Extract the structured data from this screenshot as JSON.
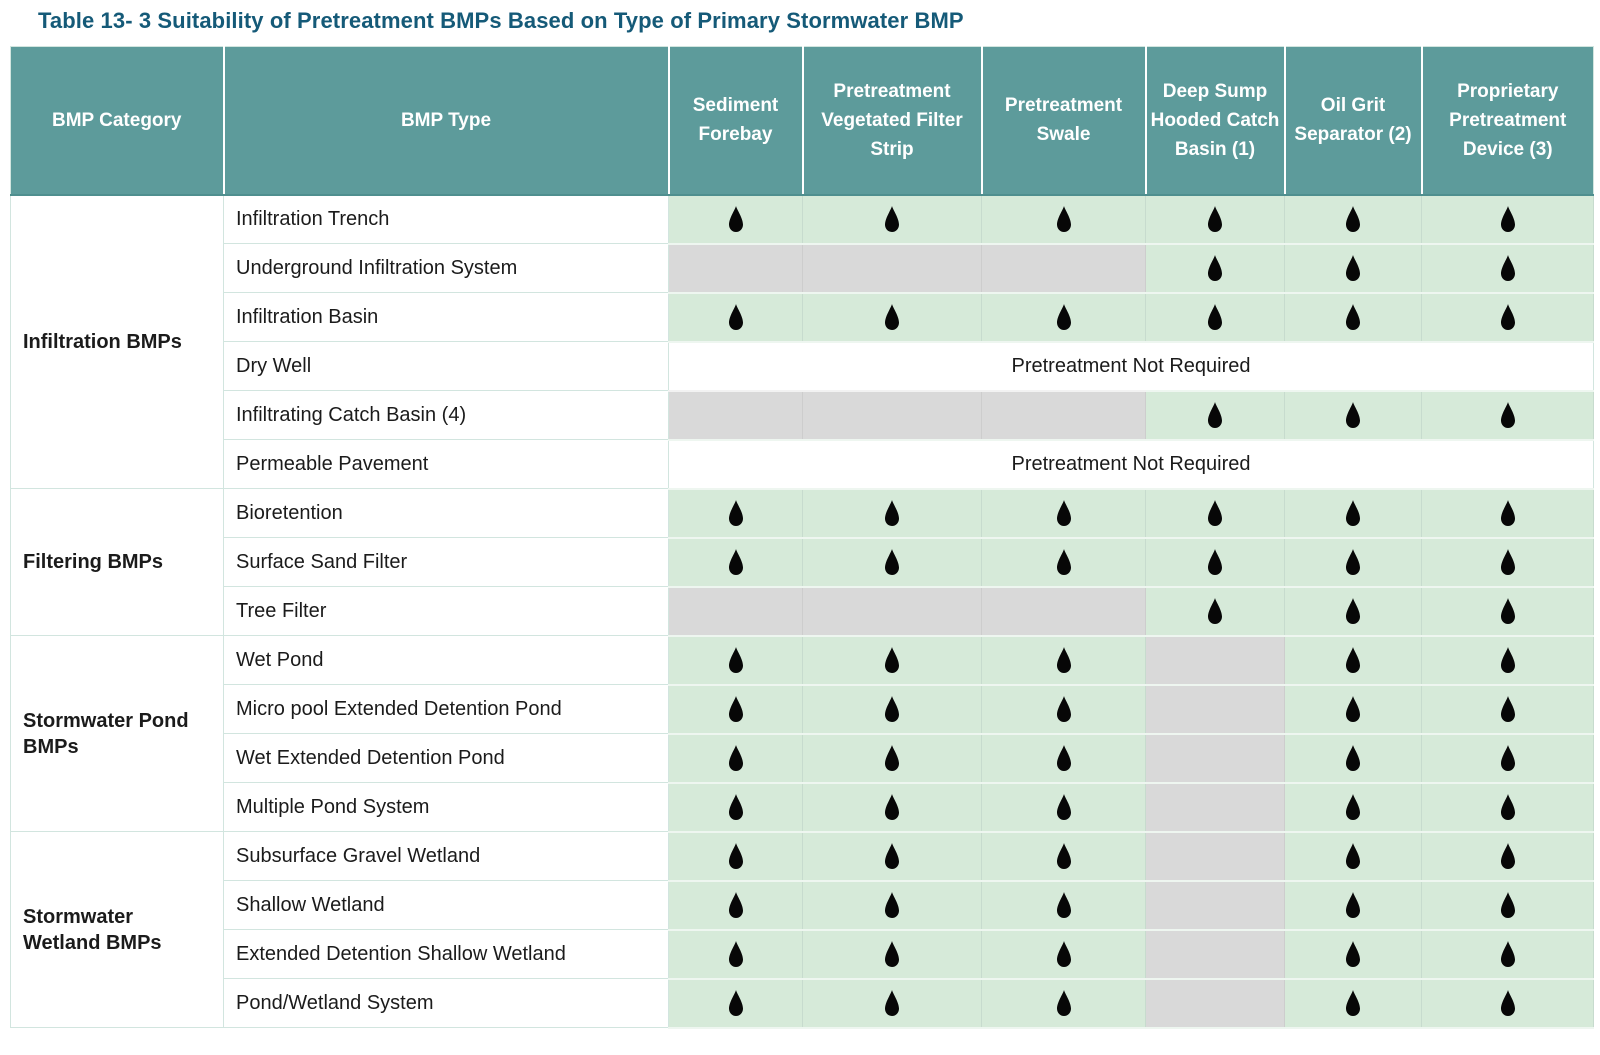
{
  "title": "Table 13- 3 Suitability of Pretreatment BMPs Based on Type of Primary Stormwater BMP",
  "colors": {
    "header_bg": "#5d9b9b",
    "header_text": "#ffffff",
    "suitable_cell_bg": "#d6ead9",
    "excluded_cell_bg": "#d9d9d9",
    "title_text": "#155a78",
    "drop_icon": "#070707"
  },
  "icons": {
    "suitable_marker": "water-drop-icon"
  },
  "table": {
    "columns": [
      "BMP Category",
      "BMP Type",
      "Sediment Forebay",
      "Pretreatment Vegetated Filter Strip",
      "Pretreatment Swale",
      "Deep Sump Hooded Catch Basin (1)",
      "Oil Grit Separator (2)",
      "Proprietary Pretreatment Device (3)"
    ],
    "groups": [
      {
        "category": "Infiltration BMPs",
        "rows": [
          {
            "type": "Infiltration Trench",
            "cells": [
              "drop",
              "drop",
              "drop",
              "drop",
              "drop",
              "drop"
            ]
          },
          {
            "type": "Underground Infiltration System",
            "cells": [
              "gray",
              "gray",
              "gray",
              "drop",
              "drop",
              "drop"
            ]
          },
          {
            "type": "Infiltration Basin",
            "cells": [
              "drop",
              "drop",
              "drop",
              "drop",
              "drop",
              "drop"
            ]
          },
          {
            "type": "Dry Well",
            "span_text": "Pretreatment Not Required"
          },
          {
            "type": "Infiltrating Catch Basin (4)",
            "cells": [
              "gray",
              "gray",
              "gray",
              "drop",
              "drop",
              "drop"
            ]
          },
          {
            "type": "Permeable Pavement",
            "span_text": "Pretreatment Not Required"
          }
        ]
      },
      {
        "category": "Filtering BMPs",
        "rows": [
          {
            "type": "Bioretention",
            "cells": [
              "drop",
              "drop",
              "drop",
              "drop",
              "drop",
              "drop"
            ]
          },
          {
            "type": "Surface Sand Filter",
            "cells": [
              "drop",
              "drop",
              "drop",
              "drop",
              "drop",
              "drop"
            ]
          },
          {
            "type": "Tree Filter",
            "cells": [
              "gray",
              "gray",
              "gray",
              "drop",
              "drop",
              "drop"
            ]
          }
        ]
      },
      {
        "category": "Stormwater Pond BMPs",
        "rows": [
          {
            "type": "Wet Pond",
            "cells": [
              "drop",
              "drop",
              "drop",
              "gray",
              "drop",
              "drop"
            ]
          },
          {
            "type": "Micro pool Extended Detention Pond",
            "cells": [
              "drop",
              "drop",
              "drop",
              "gray",
              "drop",
              "drop"
            ]
          },
          {
            "type": "Wet Extended Detention Pond",
            "cells": [
              "drop",
              "drop",
              "drop",
              "gray",
              "drop",
              "drop"
            ]
          },
          {
            "type": "Multiple Pond System",
            "cells": [
              "drop",
              "drop",
              "drop",
              "gray",
              "drop",
              "drop"
            ]
          }
        ]
      },
      {
        "category": "Stormwater Wetland BMPs",
        "rows": [
          {
            "type": "Subsurface Gravel Wetland",
            "cells": [
              "drop",
              "drop",
              "drop",
              "gray",
              "drop",
              "drop"
            ]
          },
          {
            "type": "Shallow Wetland",
            "cells": [
              "drop",
              "drop",
              "drop",
              "gray",
              "drop",
              "drop"
            ]
          },
          {
            "type": "Extended Detention Shallow Wetland",
            "cells": [
              "drop",
              "drop",
              "drop",
              "gray",
              "drop",
              "drop"
            ]
          },
          {
            "type": "Pond/Wetland System",
            "cells": [
              "drop",
              "drop",
              "drop",
              "gray",
              "drop",
              "drop"
            ]
          }
        ]
      }
    ]
  }
}
